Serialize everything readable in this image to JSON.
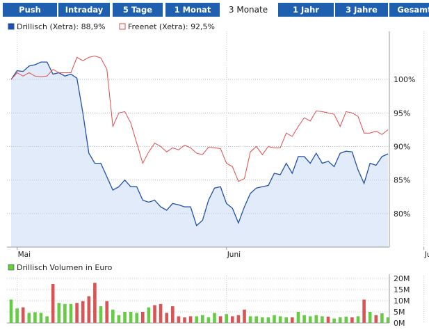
{
  "tabs": [
    {
      "label": "Push",
      "active": false
    },
    {
      "label": "Intraday",
      "active": false
    },
    {
      "label": "5 Tage",
      "active": false
    },
    {
      "label": "1 Monat",
      "active": false
    },
    {
      "label": "3 Monate",
      "active": true
    },
    {
      "label": "1 Jahr",
      "active": false
    },
    {
      "label": "3 Jahre",
      "active": false
    },
    {
      "label": "Gesamt",
      "active": false
    }
  ],
  "colors": {
    "tab_bg": "#1f5fb0",
    "series_drillisch": "#1f4fa8",
    "series_drillisch_fill": "#e1ebfa",
    "series_freenet": "#e04a4a",
    "volume_green": "#66cc44",
    "volume_red": "#d95555",
    "grid": "#c8c8c8"
  },
  "chart_data": [
    {
      "type": "line",
      "legend": [
        {
          "label": "Drillisch (Xetra): 88,9%",
          "color": "#1f4fa8"
        },
        {
          "label": "Freenet (Xetra): 92,5%",
          "color": "#e04a4a"
        }
      ],
      "x_tick_labels": [
        "Mai",
        "Juni",
        "Juli"
      ],
      "x_tick_index": [
        1,
        36,
        69
      ],
      "ylim": [
        75,
        105
      ],
      "y_ticks": [
        80,
        85,
        90,
        95,
        100
      ],
      "y_tick_labels": [
        "80%",
        "85%",
        "90%",
        "95%",
        "100%"
      ],
      "grid": true,
      "series": [
        {
          "name": "Drillisch (Xetra): 88,9%",
          "values": [
            100,
            101.3,
            101.2,
            102,
            102.2,
            102.6,
            102.6,
            100.8,
            101,
            100.5,
            100.8,
            100.2,
            95,
            89,
            87.5,
            87.5,
            85.5,
            83.5,
            84,
            85,
            84,
            84,
            82,
            81.7,
            82,
            81,
            80.5,
            81.5,
            81.3,
            81,
            81,
            78.2,
            79,
            82,
            83.8,
            84,
            81.5,
            80.8,
            78.6,
            81,
            83,
            83.8,
            84,
            84.2,
            86,
            85.8,
            87.5,
            86,
            88.5,
            88.5,
            87.5,
            89,
            87.5,
            87.8,
            87,
            89,
            89.3,
            89.2,
            86.5,
            84.5,
            87.5,
            87.2,
            88.5,
            88.9
          ]
        },
        {
          "name": "Freenet (Xetra): 92,5%",
          "values": [
            100,
            101,
            100.5,
            101,
            100.5,
            100.4,
            100.5,
            101.5,
            101,
            101,
            101,
            103.3,
            102.8,
            103.3,
            103.5,
            103.2,
            101.5,
            93,
            95,
            95.2,
            93.5,
            90.5,
            87.5,
            89.2,
            90.5,
            90,
            89.2,
            89.8,
            89.5,
            90.2,
            89.8,
            89,
            88.8,
            89.9,
            89.8,
            89.7,
            87.5,
            87,
            84.8,
            85.2,
            89.2,
            90,
            88.8,
            90,
            89.8,
            89.8,
            92,
            91.5,
            93,
            94.3,
            93.8,
            95.3,
            95.2,
            95,
            94.8,
            93,
            95.2,
            95,
            94.5,
            92,
            92,
            92.3,
            91.8,
            92.5
          ]
        }
      ]
    },
    {
      "type": "bar",
      "legend": [
        {
          "label": "Drillisch Volumen in Euro",
          "color": "#66cc44"
        }
      ],
      "ylim": [
        0,
        20
      ],
      "y_ticks": [
        0,
        5,
        10,
        15,
        20
      ],
      "y_tick_labels": [
        "0M",
        "5M",
        "10M",
        "15M",
        "20M"
      ],
      "x_tick_index": [
        1,
        36,
        69
      ],
      "grid": true,
      "series": [
        {
          "name": "Drillisch Volumen in Euro",
          "values": [
            10.5,
            6.5,
            7,
            4.5,
            4.8,
            4.5,
            3,
            17.5,
            9,
            8.5,
            8.5,
            9,
            9.8,
            12,
            18,
            7.5,
            9.8,
            6,
            3.5,
            5,
            5,
            4.5,
            5,
            7,
            8,
            8.5,
            4.5,
            7.5,
            3,
            2.5,
            3,
            3,
            3.5,
            2.5,
            4.5,
            3,
            4,
            3,
            3.5,
            6,
            3,
            3,
            2.5,
            2.5,
            3.5,
            3,
            2.5,
            2.5,
            5,
            3.5,
            3,
            3.5,
            3,
            2.8,
            2,
            2.5,
            2.8,
            2.5,
            3,
            10.5,
            5,
            3.5,
            4.3,
            2.5
          ],
          "colors": [
            "G",
            "G",
            "R",
            "G",
            "G",
            "G",
            "G",
            "R",
            "G",
            "G",
            "G",
            "R",
            "R",
            "R",
            "R",
            "G",
            "R",
            "G",
            "G",
            "G",
            "G",
            "G",
            "R",
            "G",
            "R",
            "R",
            "R",
            "R",
            "R",
            "R",
            "R",
            "G",
            "G",
            "G",
            "G",
            "R",
            "G",
            "R",
            "R",
            "R",
            "G",
            "G",
            "G",
            "G",
            "G",
            "G",
            "G",
            "R",
            "G",
            "G",
            "G",
            "G",
            "G",
            "R",
            "G",
            "G",
            "G",
            "R",
            "G",
            "R",
            "G",
            "R",
            "G",
            "G"
          ]
        }
      ]
    }
  ]
}
